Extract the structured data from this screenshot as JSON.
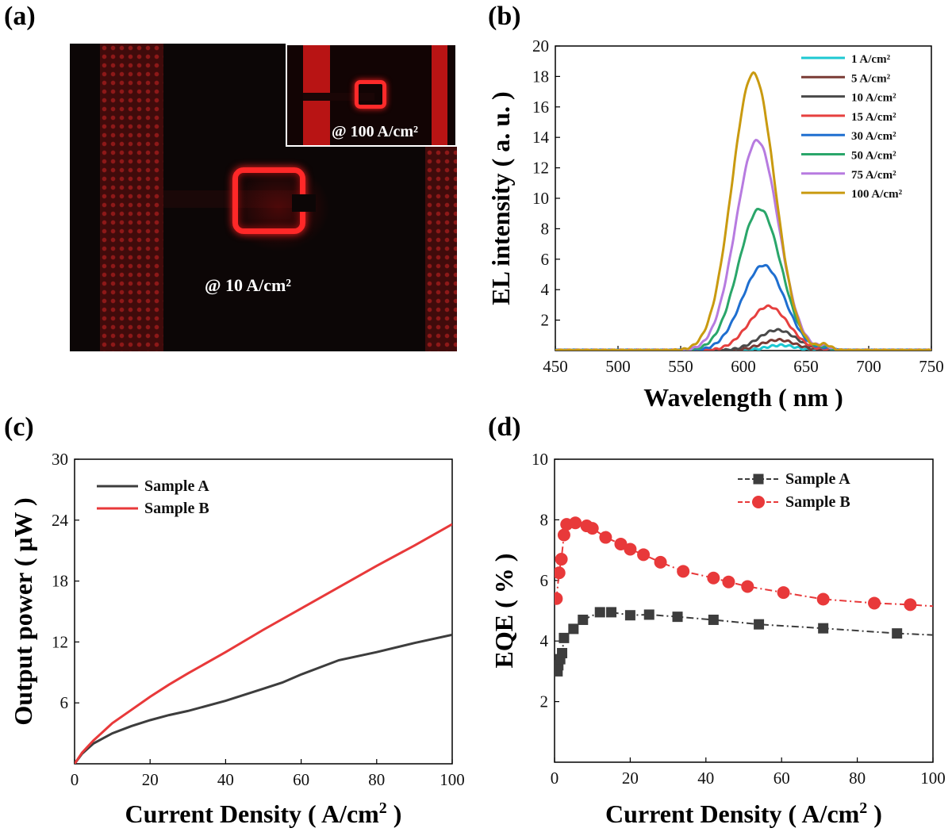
{
  "panels": {
    "a": {
      "label": "(a)",
      "photo_annotation": "@ 10 A/cm²",
      "inset_annotation": "@ 100 A/cm²"
    },
    "b": {
      "label": "(b)"
    },
    "c": {
      "label": "(c)"
    },
    "d": {
      "label": "(d)"
    }
  },
  "chart_data": [
    {
      "id": "b",
      "type": "line",
      "xlabel": "Wavelength ( nm )",
      "ylabel": "EL intensity ( a. u. )",
      "xlim": [
        450,
        750
      ],
      "ylim": [
        0,
        20
      ],
      "xticks": [
        450,
        500,
        550,
        600,
        650,
        700,
        750
      ],
      "yticks": [
        2,
        4,
        6,
        8,
        10,
        12,
        14,
        16,
        18,
        20
      ],
      "legend_position": "top-right",
      "series": [
        {
          "name": "1 A/cm²",
          "color": "#1ec8d2",
          "peak": 0.35,
          "center": 630,
          "sigma": 12
        },
        {
          "name": "5 A/cm²",
          "color": "#7a3b35",
          "peak": 0.7,
          "center": 628,
          "sigma": 14
        },
        {
          "name": "10 A/cm²",
          "color": "#4a4a4a",
          "peak": 1.35,
          "center": 627,
          "sigma": 15
        },
        {
          "name": "15 A/cm²",
          "color": "#e6403f",
          "peak": 2.9,
          "center": 620,
          "sigma": 16
        },
        {
          "name": "30 A/cm²",
          "color": "#1f6fd0",
          "peak": 5.6,
          "center": 616,
          "sigma": 17
        },
        {
          "name": "50 A/cm²",
          "color": "#2aa66a",
          "peak": 9.3,
          "center": 613,
          "sigma": 17
        },
        {
          "name": "75 A/cm²",
          "color": "#b77be0",
          "peak": 13.8,
          "center": 611,
          "sigma": 17
        },
        {
          "name": "100 A/cm²",
          "color": "#c99a10",
          "peak": 18.2,
          "center": 608,
          "sigma": 17
        }
      ]
    },
    {
      "id": "c",
      "type": "line",
      "xlabel": "Current Density ( A/cm",
      "xlabel_sup": "2",
      "xlabel_end": " )",
      "ylabel": "Output power ( μW )",
      "xlim": [
        0,
        100
      ],
      "ylim": [
        0,
        30
      ],
      "xticks": [
        0,
        20,
        40,
        60,
        80,
        100
      ],
      "yticks": [
        6,
        12,
        18,
        24,
        30
      ],
      "legend_position": "top-left",
      "series": [
        {
          "name": "Sample A",
          "color": "#3d3d3d",
          "x": [
            0,
            2,
            5,
            10,
            15,
            20,
            25,
            30,
            40,
            50,
            55,
            60,
            70,
            80,
            90,
            100
          ],
          "y": [
            0,
            1.0,
            2.0,
            3.0,
            3.7,
            4.3,
            4.8,
            5.2,
            6.2,
            7.4,
            8.0,
            8.8,
            10.2,
            11.0,
            11.9,
            12.7
          ]
        },
        {
          "name": "Sample B",
          "color": "#e8393a",
          "x": [
            0,
            2,
            5,
            10,
            15,
            20,
            25,
            30,
            40,
            50,
            60,
            70,
            80,
            90,
            100
          ],
          "y": [
            0,
            1.1,
            2.3,
            4.0,
            5.3,
            6.6,
            7.8,
            8.9,
            11.0,
            13.2,
            15.3,
            17.4,
            19.5,
            21.5,
            23.6
          ]
        }
      ]
    },
    {
      "id": "d",
      "type": "line",
      "xlabel": "Current Density ( A/cm",
      "xlabel_sup": "2",
      "xlabel_end": " )",
      "ylabel": "EQE ( % )",
      "xlim": [
        0,
        100
      ],
      "ylim": [
        0,
        10
      ],
      "xticks": [
        0,
        20,
        40,
        60,
        80,
        100
      ],
      "yticks": [
        2,
        4,
        6,
        8,
        10
      ],
      "legend_position": "top-right",
      "series": [
        {
          "name": "Sample A",
          "color": "#3d3d3d",
          "marker": "square",
          "x": [
            0.8,
            1.0,
            1.5,
            2.0,
            2.5,
            5,
            7.5,
            12,
            15,
            20,
            25,
            32.5,
            42,
            54,
            71,
            90.5,
            100
          ],
          "y": [
            3.0,
            3.2,
            3.4,
            3.6,
            4.1,
            4.4,
            4.7,
            4.95,
            4.95,
            4.85,
            4.87,
            4.8,
            4.7,
            4.55,
            4.42,
            4.25,
            4.2
          ],
          "markers_visible": [
            1,
            1,
            1,
            1,
            1,
            1,
            1,
            1,
            1,
            1,
            1,
            1,
            1,
            1,
            1,
            1,
            0
          ]
        },
        {
          "name": "Sample B",
          "color": "#e8393a",
          "marker": "circle",
          "x": [
            0.5,
            1.2,
            1.8,
            2.5,
            3.2,
            5.5,
            8.5,
            10,
            13.5,
            17.5,
            20,
            23.5,
            28,
            34,
            42,
            46,
            51,
            60.5,
            71,
            84.5,
            94,
            100
          ],
          "y": [
            5.4,
            6.25,
            6.7,
            7.5,
            7.85,
            7.9,
            7.8,
            7.72,
            7.42,
            7.2,
            7.03,
            6.85,
            6.6,
            6.3,
            6.08,
            5.95,
            5.8,
            5.6,
            5.38,
            5.25,
            5.2,
            5.15
          ],
          "markers_visible": [
            1,
            1,
            1,
            1,
            1,
            1,
            1,
            1,
            1,
            1,
            1,
            1,
            1,
            1,
            1,
            1,
            1,
            1,
            1,
            1,
            1,
            0
          ]
        }
      ]
    }
  ]
}
